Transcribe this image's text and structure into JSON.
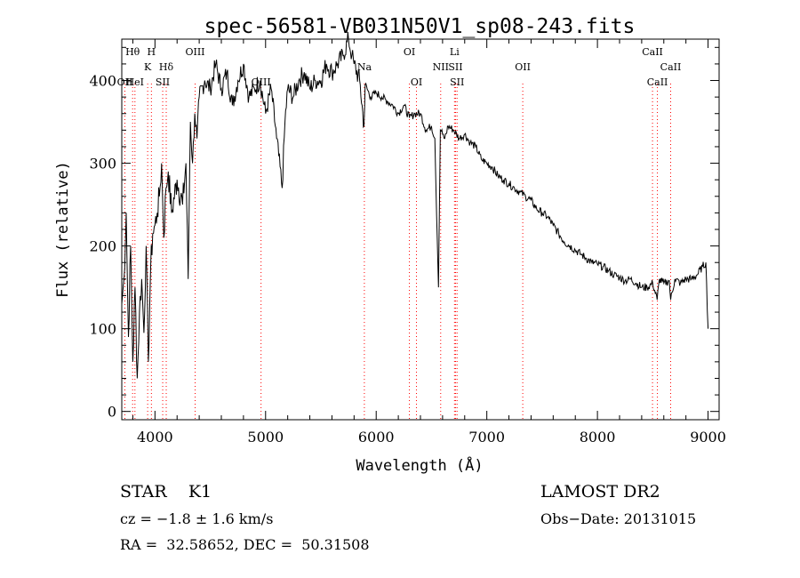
{
  "chart_data": {
    "type": "line",
    "title": "spec-56581-VB031N50V1_sp08-243.fits",
    "xlabel": "Wavelength (Å)",
    "ylabel": "Flux (relative)",
    "xlim": [
      3700,
      9100
    ],
    "ylim": [
      -10,
      450
    ],
    "x_ticks": [
      4000,
      5000,
      6000,
      7000,
      8000,
      9000
    ],
    "y_ticks": [
      0,
      100,
      200,
      300,
      400
    ],
    "grid": false,
    "line_color": "#000000",
    "marker_color": "#ff0000",
    "series": [
      {
        "x": [
          3700,
          3720,
          3740,
          3760,
          3780,
          3800,
          3820,
          3840,
          3860,
          3880,
          3900,
          3920,
          3940,
          3960,
          3980,
          4000,
          4020,
          4040,
          4060,
          4080,
          4100,
          4120,
          4150,
          4200,
          4250,
          4280,
          4300,
          4320,
          4340,
          4360,
          4380,
          4400,
          4450,
          4500,
          4550,
          4600,
          4650,
          4700,
          4750,
          4800,
          4850,
          4900,
          4950,
          5000,
          5050,
          5100,
          5150,
          5175,
          5200,
          5250,
          5300,
          5350,
          5400,
          5450,
          5500,
          5550,
          5600,
          5650,
          5700,
          5750,
          5780,
          5800,
          5850,
          5890,
          5900,
          5950,
          6000,
          6050,
          6100,
          6150,
          6200,
          6250,
          6300,
          6350,
          6400,
          6450,
          6500,
          6530,
          6563,
          6580,
          6600,
          6620,
          6650,
          6700,
          6750,
          6800,
          6850,
          6900,
          6950,
          7000,
          7050,
          7100,
          7150,
          7200,
          7250,
          7300,
          7350,
          7400,
          7450,
          7500,
          7550,
          7600,
          7650,
          7700,
          7750,
          7800,
          7850,
          7900,
          7950,
          8000,
          8050,
          8100,
          8150,
          8200,
          8250,
          8300,
          8350,
          8400,
          8450,
          8500,
          8540,
          8560,
          8600,
          8650,
          8662,
          8700,
          8750,
          8800,
          8850,
          8900,
          8950,
          8980,
          9000
        ],
        "y": [
          130,
          160,
          240,
          90,
          200,
          60,
          150,
          40,
          120,
          160,
          95,
          200,
          60,
          170,
          215,
          225,
          240,
          260,
          300,
          210,
          270,
          290,
          240,
          280,
          250,
          300,
          160,
          350,
          300,
          360,
          330,
          380,
          400,
          390,
          420,
          390,
          410,
          370,
          400,
          420,
          380,
          390,
          400,
          360,
          390,
          330,
          270,
          350,
          390,
          380,
          400,
          410,
          390,
          400,
          400,
          420,
          410,
          420,
          430,
          450,
          430,
          420,
          400,
          345,
          395,
          380,
          385,
          380,
          375,
          370,
          360,
          370,
          355,
          360,
          360,
          340,
          345,
          330,
          150,
          340,
          335,
          330,
          345,
          340,
          330,
          335,
          325,
          320,
          305,
          300,
          295,
          285,
          280,
          275,
          270,
          265,
          260,
          255,
          245,
          240,
          235,
          225,
          215,
          205,
          200,
          195,
          190,
          185,
          180,
          178,
          175,
          170,
          165,
          162,
          158,
          160,
          155,
          150,
          150,
          155,
          135,
          160,
          155,
          158,
          135,
          160,
          155,
          160,
          160,
          165,
          175,
          180,
          100
        ]
      }
    ],
    "line_markers": [
      {
        "label": "Hθ",
        "wl": 3798,
        "row": 0
      },
      {
        "label": "OII",
        "wl": 3728,
        "row": 2
      },
      {
        "label": "HeI",
        "wl": 3819,
        "row": 2
      },
      {
        "label": "K",
        "wl": 3934,
        "row": 1
      },
      {
        "label": "H",
        "wl": 3968,
        "row": 0
      },
      {
        "label": "SII",
        "wl": 4070,
        "row": 2
      },
      {
        "label": "Hδ",
        "wl": 4102,
        "row": 1
      },
      {
        "label": "OIII",
        "wl": 4363,
        "row": 0
      },
      {
        "label": "OIII",
        "wl": 4959,
        "row": 2
      },
      {
        "label": "Na",
        "wl": 5893,
        "row": 1
      },
      {
        "label": "OI",
        "wl": 6300,
        "row": 0
      },
      {
        "label": "OI",
        "wl": 6364,
        "row": 2
      },
      {
        "label": "NII",
        "wl": 6583,
        "row": 1
      },
      {
        "label": "Li",
        "wl": 6708,
        "row": 0
      },
      {
        "label": "SII",
        "wl": 6717,
        "row": 1
      },
      {
        "label": "SII",
        "wl": 6731,
        "row": 2
      },
      {
        "label": "OII",
        "wl": 7325,
        "row": 1
      },
      {
        "label": "CaII",
        "wl": 8498,
        "row": 0
      },
      {
        "label": "CaII",
        "wl": 8542,
        "row": 2
      },
      {
        "label": "CaII",
        "wl": 8662,
        "row": 1
      }
    ]
  },
  "info": {
    "object_class": "STAR    K1",
    "redshift": "cz = −1.8 ± 1.6 km/s",
    "coords": "RA =  32.58652, DEC =  50.31508",
    "survey": "LAMOST DR2",
    "obs_date": "Obs−Date: 20131015"
  }
}
